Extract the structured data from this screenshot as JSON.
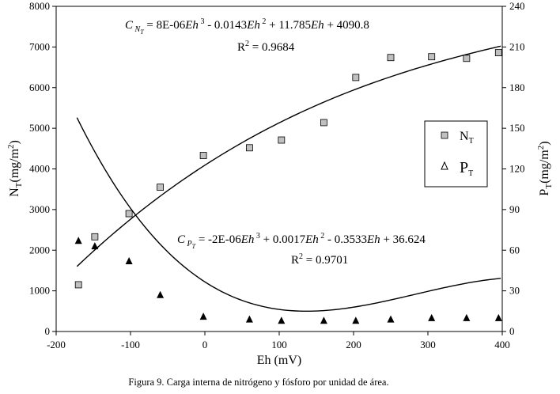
{
  "caption": "Figura 9. Carga interna de nitrógeno y fósforo por unidad de área.",
  "chart_data": {
    "type": "scatter",
    "title": "",
    "xlabel": "Eh (mV)",
    "xlim": [
      -200,
      400
    ],
    "xticks": [
      -200,
      -100,
      0,
      100,
      200,
      300,
      400
    ],
    "ylabel_left": "NT(mg/m2)",
    "ylim_left": [
      0,
      8000
    ],
    "yticks_left": [
      0,
      1000,
      2000,
      3000,
      4000,
      5000,
      6000,
      7000,
      8000
    ],
    "ylabel_right": "PT(mg/m2)",
    "ylim_right": [
      0,
      240
    ],
    "yticks_right": [
      0,
      30,
      60,
      90,
      120,
      150,
      180,
      210,
      240
    ],
    "grid": false,
    "legend_position": "right",
    "series": [
      {
        "name": "NT",
        "axis": "left",
        "marker": "square",
        "color": "#c0c0c0",
        "x": [
          -170,
          -148,
          -102,
          -60,
          -2,
          60,
          103,
          160,
          203,
          250,
          305,
          352,
          395
        ],
        "y": [
          1150,
          2330,
          2900,
          3550,
          4330,
          4520,
          4710,
          5140,
          6250,
          6740,
          6760,
          6720,
          6860
        ],
        "trendline": {
          "equation": "C_NT = 8E-06Eh^3 - 0.0143Eh^2 + 11.785Eh + 4090.8",
          "coefficients": [
            8e-06,
            -0.0143,
            11.785,
            4090.8
          ],
          "r2": "R2 = 0.9684",
          "x_range": [
            -172,
            398
          ]
        }
      },
      {
        "name": "PT",
        "axis": "right",
        "marker": "triangle",
        "color": "#000000",
        "x": [
          -170,
          -148,
          -102,
          -60,
          -2,
          60,
          103,
          160,
          203,
          250,
          305,
          352,
          395
        ],
        "y": [
          67,
          63,
          52,
          27,
          11,
          9,
          8,
          8,
          8,
          9,
          10,
          10,
          10
        ],
        "trendline": {
          "equation": "C_PT = -2E-06Eh^3 + 0.0017Eh^2 - 0.3533Eh + 36.624",
          "coefficients": [
            -2e-06,
            0.0017,
            -0.3533,
            36.624
          ],
          "r2": "R2 = 0.9701",
          "x_range": [
            -172,
            398
          ]
        }
      }
    ]
  }
}
